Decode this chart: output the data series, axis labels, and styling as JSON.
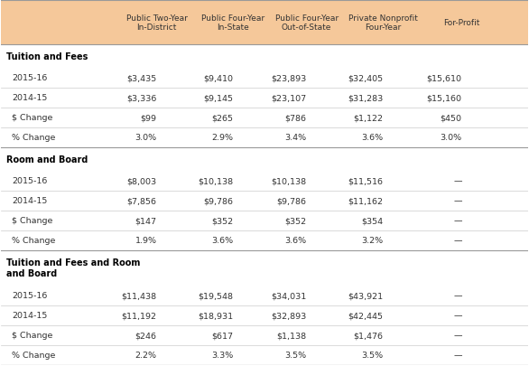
{
  "header_bg": "#F5C89A",
  "header_text_color": "#333333",
  "col_headers": [
    "",
    "Public Two-Year\nIn-District",
    "Public Four-Year\nIn-State",
    "Public Four-Year\nOut-of-State",
    "Private Nonprofit\nFour-Year",
    "For-Profit"
  ],
  "sections": [
    {
      "title": "Tuition and Fees",
      "rows": [
        [
          "2015-16",
          "$3,435",
          "$9,410",
          "$23,893",
          "$32,405",
          "$15,610"
        ],
        [
          "2014-15",
          "$3,336",
          "$9,145",
          "$23,107",
          "$31,283",
          "$15,160"
        ],
        [
          "$ Change",
          "$99",
          "$265",
          "$786",
          "$1,122",
          "$450"
        ],
        [
          "% Change",
          "3.0%",
          "2.9%",
          "3.4%",
          "3.6%",
          "3.0%"
        ]
      ]
    },
    {
      "title": "Room and Board",
      "rows": [
        [
          "2015-16",
          "$8,003",
          "$10,138",
          "$10,138",
          "$11,516",
          "—"
        ],
        [
          "2014-15",
          "$7,856",
          "$9,786",
          "$9,786",
          "$11,162",
          "—"
        ],
        [
          "$ Change",
          "$147",
          "$352",
          "$352",
          "$354",
          "—"
        ],
        [
          "% Change",
          "1.9%",
          "3.6%",
          "3.6%",
          "3.2%",
          "—"
        ]
      ]
    },
    {
      "title": "Tuition and Fees and Room\nand Board",
      "rows": [
        [
          "2015-16",
          "$11,438",
          "$19,548",
          "$34,031",
          "$43,921",
          "—"
        ],
        [
          "2014-15",
          "$11,192",
          "$18,931",
          "$32,893",
          "$42,445",
          "—"
        ],
        [
          "$ Change",
          "$246",
          "$617",
          "$1,138",
          "$1,476",
          "—"
        ],
        [
          "% Change",
          "2.2%",
          "3.3%",
          "3.5%",
          "3.5%",
          "—"
        ]
      ]
    }
  ],
  "line_color": "#CCCCCC",
  "section_title_color": "#000000",
  "row_label_color": "#333333",
  "data_color": "#333333",
  "bg_color": "#FFFFFF"
}
